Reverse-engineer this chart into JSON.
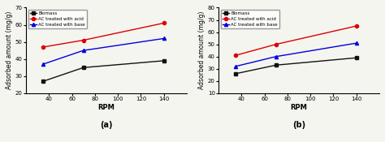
{
  "subplot_a": {
    "label": "(a)",
    "rpm": [
      35,
      70,
      140
    ],
    "biomass": [
      27,
      35,
      39
    ],
    "acid": [
      47,
      51,
      61
    ],
    "base": [
      37,
      45,
      52
    ],
    "ylim": [
      20,
      70
    ],
    "yticks": [
      20,
      30,
      40,
      50,
      60,
      70
    ]
  },
  "subplot_b": {
    "label": "(b)",
    "rpm": [
      35,
      70,
      140
    ],
    "biomass": [
      26,
      33,
      39
    ],
    "acid": [
      41,
      50,
      65
    ],
    "base": [
      32,
      40,
      51
    ],
    "ylim": [
      10,
      80
    ],
    "yticks": [
      10,
      20,
      30,
      40,
      50,
      60,
      70,
      80
    ]
  },
  "legend_labels": [
    "Biomass",
    "AC treated with acid",
    "AC treated with base"
  ],
  "colors": {
    "biomass": "#111111",
    "acid": "#dd0000",
    "base": "#0000dd"
  },
  "markers": {
    "biomass": "s",
    "acid": "o",
    "base": "^"
  },
  "xlabel": "RPM",
  "ylabel": "Adsorbed amount (mg/g)",
  "xlim": [
    20,
    160
  ],
  "xticks": [
    40,
    60,
    80,
    100,
    120,
    140
  ],
  "background_color": "#f5f5f0"
}
